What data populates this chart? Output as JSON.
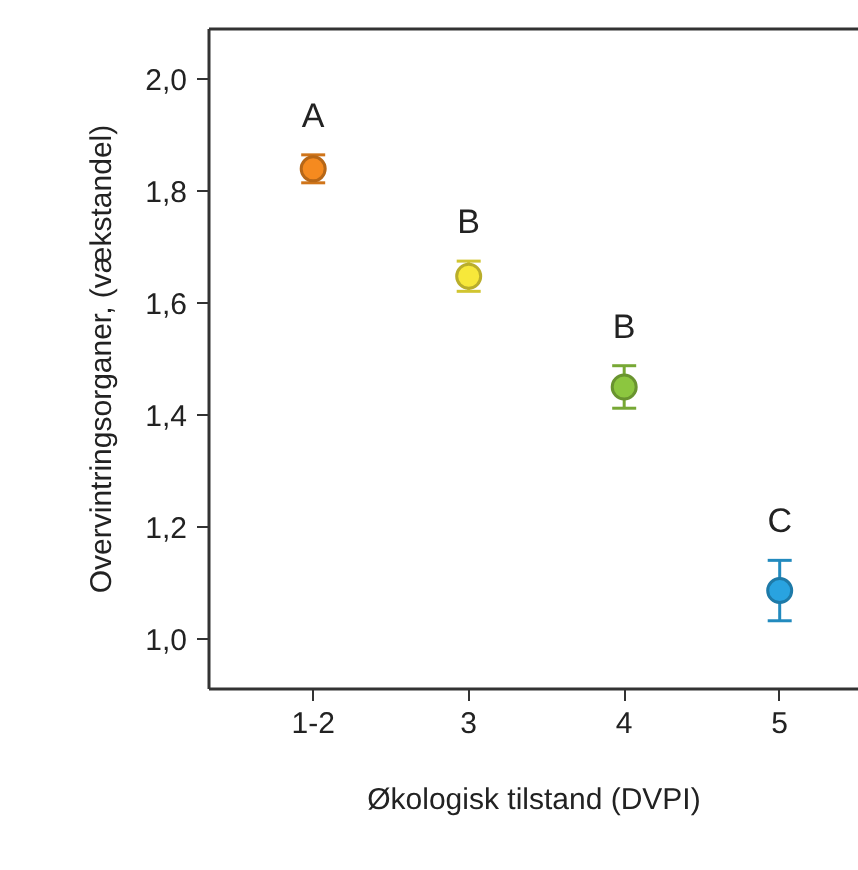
{
  "chart_data": {
    "type": "scatter",
    "xlabel": "Økologisk tilstand (DVPI)",
    "ylabel": "Overvintringsorganer, (vækstandel)",
    "categories": [
      "1-2",
      "3",
      "4",
      "5"
    ],
    "values": [
      1.84,
      1.648,
      1.45,
      1.086
    ],
    "errors": [
      0.025,
      0.027,
      0.038,
      0.054
    ],
    "colors": [
      "#f58a1f",
      "#f7e83a",
      "#8cc63f",
      "#29a3e0"
    ],
    "marker": "circle",
    "ylim": [
      0.91,
      2.09
    ],
    "yticks": [
      {
        "value": 1.0,
        "label": "1,0"
      },
      {
        "value": 1.2,
        "label": "1,2"
      },
      {
        "value": 1.4,
        "label": "1,4"
      },
      {
        "value": 1.6,
        "label": "1,6"
      },
      {
        "value": 1.8,
        "label": "1,8"
      },
      {
        "value": 2.0,
        "label": "2,0"
      }
    ],
    "grid": false,
    "annotations": [
      "A",
      "B",
      "B",
      "C"
    ]
  }
}
